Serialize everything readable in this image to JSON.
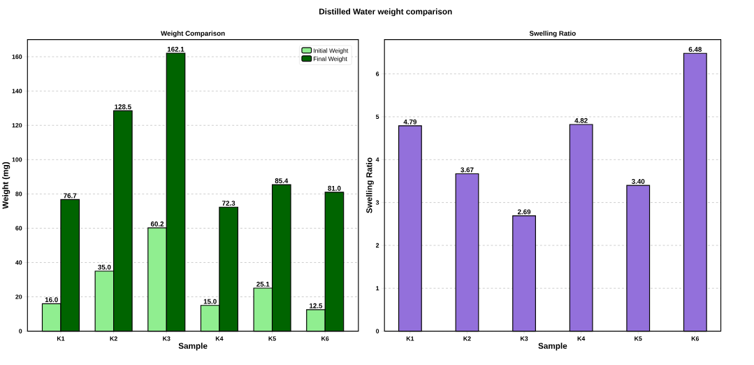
{
  "chart_data": [
    {
      "type": "bar",
      "title": "Weight Comparison",
      "xlabel": "Sample",
      "ylabel": "Weight (mg)",
      "annotations": [
        "Distilled Water weight comparison"
      ],
      "categories": [
        "K1",
        "K2",
        "K3",
        "K4",
        "K5",
        "K6"
      ],
      "series": [
        {
          "name": "Initial Weight",
          "color": "#90ee90",
          "values": [
            16.0,
            35.0,
            60.2,
            15.0,
            25.1,
            12.5
          ],
          "value_labels": [
            "16.0",
            "35.0",
            "60.2",
            "15.0",
            "25.1",
            "12.5"
          ]
        },
        {
          "name": "Final Weight",
          "color": "#006400",
          "values": [
            76.7,
            128.5,
            162.1,
            72.3,
            85.4,
            81.0
          ],
          "value_labels": [
            "76.7",
            "128.5",
            "162.1",
            "72.3",
            "85.4",
            "81.0"
          ]
        }
      ],
      "ylim": [
        0,
        170
      ],
      "yticks": [
        0,
        20,
        40,
        60,
        80,
        100,
        120,
        140,
        160
      ],
      "grid": "y",
      "legend": "top right"
    },
    {
      "type": "bar",
      "title": "Swelling Ratio",
      "xlabel": "Sample",
      "ylabel": "Swelling Ratio",
      "categories": [
        "K1",
        "K2",
        "K3",
        "K4",
        "K5",
        "K6"
      ],
      "values": [
        4.79,
        3.67,
        2.69,
        4.82,
        3.4,
        6.48
      ],
      "color": "#9370db",
      "value_labels": [
        "4.79",
        "3.67",
        "2.69",
        "4.82",
        "3.40",
        "6.48"
      ],
      "ylim": [
        0,
        6.8
      ],
      "yticks": [
        0,
        1,
        2,
        3,
        4,
        5,
        6
      ],
      "grid": "y"
    }
  ]
}
